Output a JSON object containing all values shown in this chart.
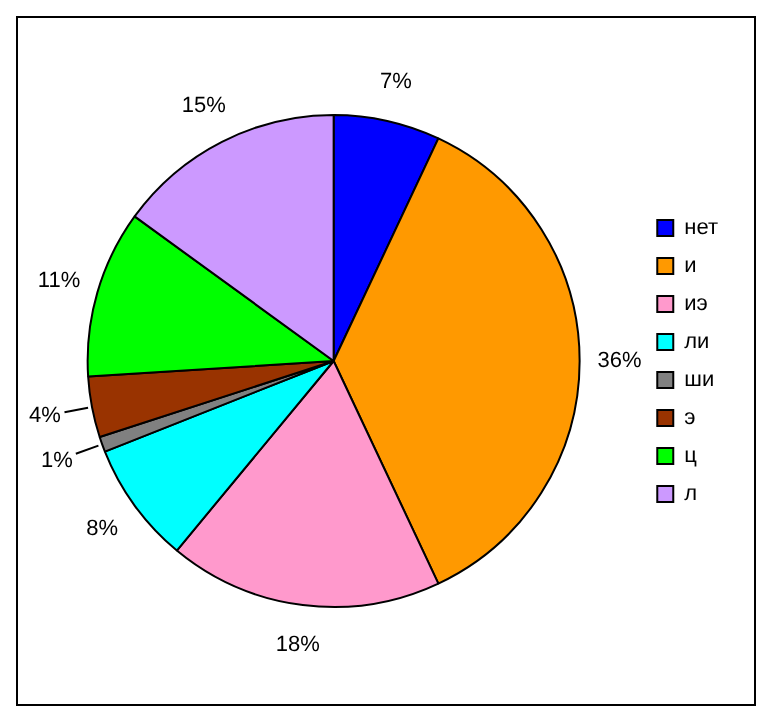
{
  "chart_data": {
    "type": "pie",
    "categories": [
      "нет",
      "и",
      "иэ",
      "ли",
      "ши",
      "э",
      "ц",
      "л"
    ],
    "values": [
      7,
      36,
      18,
      8,
      1,
      4,
      11,
      15
    ],
    "colors": [
      "#0000ff",
      "#ff9900",
      "#ff99cc",
      "#00ffff",
      "#808080",
      "#993300",
      "#00ff00",
      "#cc99ff"
    ],
    "value_labels": [
      "7%",
      "36%",
      "18%",
      "8%",
      "1%",
      "4%",
      "11%",
      "15%"
    ],
    "legend": "right"
  }
}
